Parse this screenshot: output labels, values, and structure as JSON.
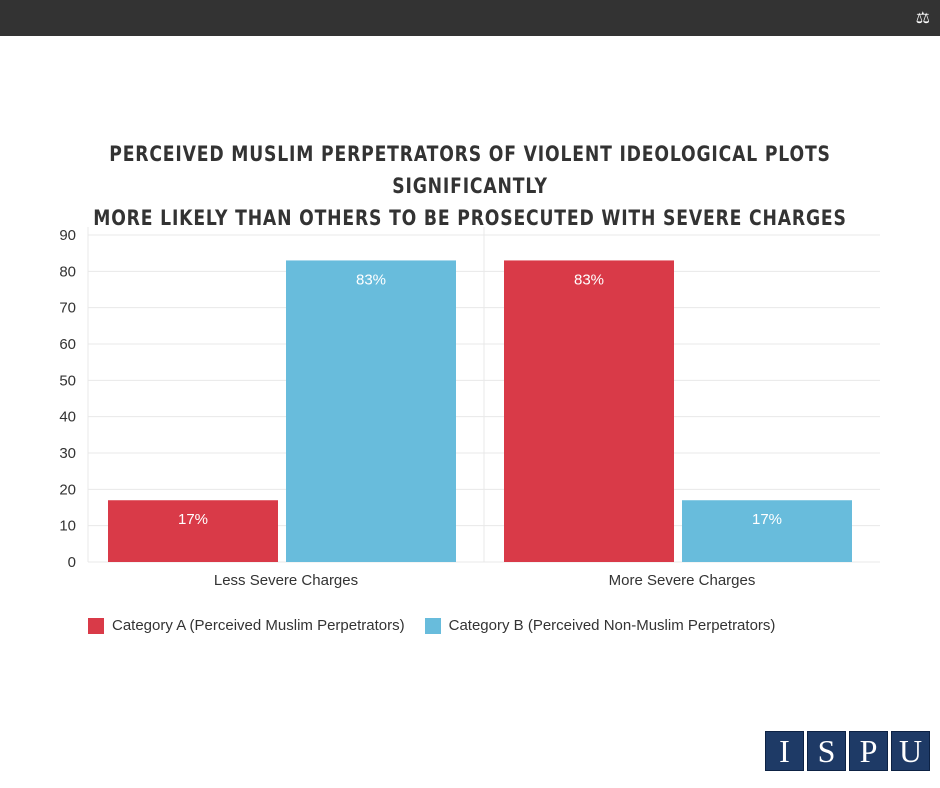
{
  "logo_text": "ISPU",
  "chart_data": {
    "type": "bar",
    "title": "PERCEIVED MUSLIM PERPETRATORS OF VIOLENT IDEOLOGICAL PLOTS SIGNIFICANTLY MORE LIKELY THAN OTHERS TO BE PROSECUTED WITH SEVERE CHARGES",
    "title_lines": [
      "PERCEIVED MUSLIM PERPETRATORS OF VIOLENT IDEOLOGICAL PLOTS SIGNIFICANTLY",
      "MORE LIKELY THAN OTHERS TO BE PROSECUTED WITH SEVERE CHARGES"
    ],
    "categories": [
      "Less Severe Charges",
      "More Severe Charges"
    ],
    "series": [
      {
        "name": "Category A (Perceived Muslim Perpetrators)",
        "color": "#d93a48",
        "values": [
          17,
          83
        ],
        "labels": [
          "17%",
          "83%"
        ]
      },
      {
        "name": "Category B (Perceived Non-Muslim Perpetrators)",
        "color": "#68bcdc",
        "values": [
          83,
          17
        ],
        "labels": [
          "83%",
          "17%"
        ]
      }
    ],
    "ylim": [
      0,
      90
    ],
    "yticks": [
      "0",
      "10",
      "20",
      "30",
      "40",
      "50",
      "60",
      "70",
      "80",
      "90"
    ],
    "grid": true,
    "legend": "bottom-left"
  }
}
